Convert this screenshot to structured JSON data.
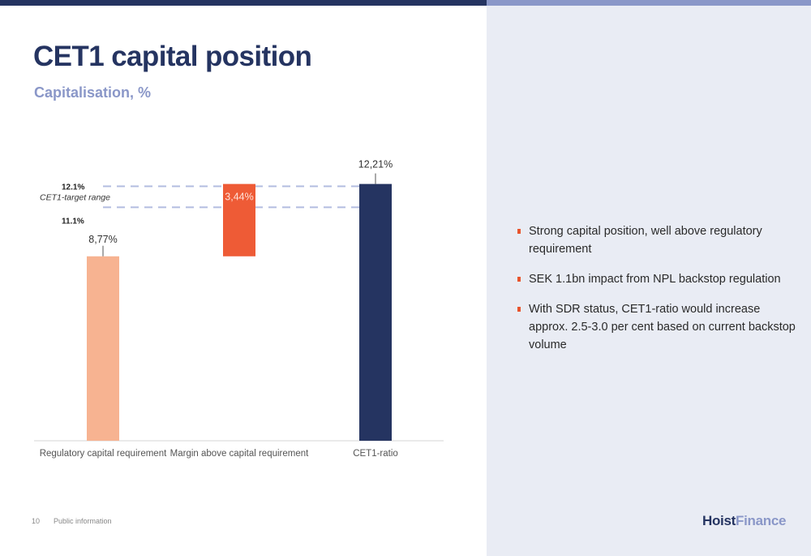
{
  "header": {
    "title": "CET1 capital position",
    "subtitle": "Capitalisation, %"
  },
  "colors": {
    "navy": "#253461",
    "periwinkle": "#8a97c8",
    "salmon": "#f7b391",
    "orange": "#ee5b36",
    "bullet": "#e8542e",
    "panel": "#e9ecf4",
    "dash": "#b3bce0"
  },
  "chart_data": {
    "type": "bar",
    "subtype": "waterfall",
    "categories": [
      "Regulatory capital requirement",
      "Margin above capital requirement",
      "CET1-ratio"
    ],
    "bars": [
      {
        "category": "Regulatory capital requirement",
        "base": 0,
        "value": 8.77,
        "label": "8,77%",
        "color": "#f7b391"
      },
      {
        "category": "Margin above capital requirement",
        "base": 8.77,
        "value": 3.44,
        "label": "3,44%",
        "color": "#ee5b36"
      },
      {
        "category": "CET1-ratio",
        "base": 0,
        "value": 12.21,
        "label": "12,21%",
        "color": "#253461"
      }
    ],
    "target_range": {
      "label": "CET1-target range",
      "upper": 12.1,
      "lower": 11.1,
      "upper_label": "12.1%",
      "lower_label": "11.1%"
    },
    "ylim": [
      0,
      13.5
    ],
    "grid": false,
    "legend": "none"
  },
  "bullets": [
    "Strong capital position, well above regulatory requirement",
    "SEK 1.1bn impact from NPL backstop regulation",
    "With SDR status, CET1-ratio would increase approx. 2.5-3.0 per cent based on current backstop volume"
  ],
  "footer": {
    "page_number": "10",
    "classification": "Public information",
    "logo_part1": "Hoist",
    "logo_part2": "Finance"
  }
}
